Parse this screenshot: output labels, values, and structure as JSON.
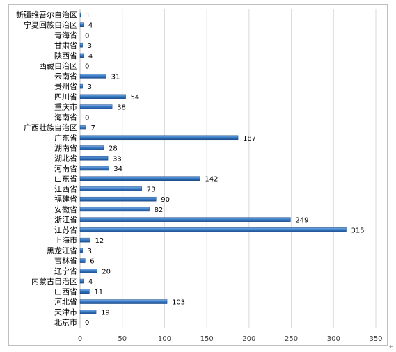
{
  "chart_data": {
    "type": "bar",
    "orientation": "horizontal",
    "categories": [
      "新疆维吾尔自治区",
      "宁夏回族自治区",
      "青海省",
      "甘肃省",
      "陕西省",
      "西藏自治区",
      "云南省",
      "贵州省",
      "四川省",
      "重庆市",
      "海南省",
      "广西壮族自治区",
      "广东省",
      "湖南省",
      "湖北省",
      "河南省",
      "山东省",
      "江西省",
      "福建省",
      "安徽省",
      "浙江省",
      "江苏省",
      "上海市",
      "黑龙江省",
      "吉林省",
      "辽宁省",
      "内蒙古自治区",
      "山西省",
      "河北省",
      "天津市",
      "北京市"
    ],
    "values": [
      1,
      4,
      0,
      3,
      4,
      0,
      31,
      3,
      54,
      38,
      0,
      7,
      187,
      28,
      33,
      34,
      142,
      73,
      90,
      82,
      249,
      315,
      12,
      3,
      6,
      20,
      4,
      11,
      103,
      19,
      0
    ],
    "xlim": [
      0,
      350
    ],
    "xticks": [
      0,
      50,
      100,
      150,
      200,
      250,
      300,
      350
    ],
    "grid": true,
    "data_labels": true,
    "bar_color": "#2f6db5"
  }
}
